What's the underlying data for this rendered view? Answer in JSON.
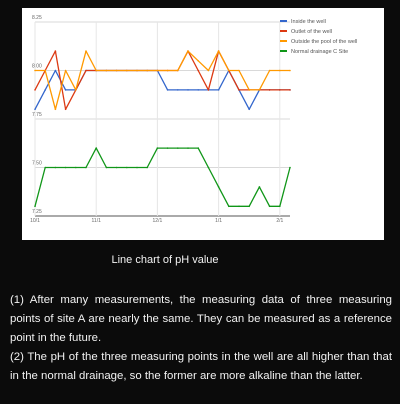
{
  "caption": "Line chart of pH value",
  "answer": {
    "point_1": "(1) After many measurements, the measuring data of three measuring points of site A are nearly the same. They can be measured as a reference point in the future.",
    "point_2": "(2) The pH of the three measuring points in the well are all higher than that in the normal drainage, so the former are more alkaline than the latter."
  },
  "chart_data": {
    "type": "line",
    "title": "",
    "xlabel": "",
    "ylabel": "",
    "x_ticks": [
      "10/1",
      "11/1",
      "12/1",
      "1/1",
      "2/1"
    ],
    "y_ticks": [
      7.25,
      7.5,
      7.75,
      8.0,
      8.25
    ],
    "y_tick_labels": [
      "7.25",
      "7.50",
      "7.75",
      "8.00",
      "8.25"
    ],
    "ylim": [
      7.25,
      8.25
    ],
    "grid": true,
    "legend_position": "top-right",
    "series": [
      {
        "name": "Inside the well",
        "color": "#3366cc",
        "x": [
          "10/1",
          "10/6",
          "10/11",
          "10/16",
          "10/21",
          "10/26",
          "10/31",
          "11/5",
          "11/10",
          "11/15",
          "11/20",
          "11/25",
          "11/30",
          "12/5",
          "12/10",
          "12/15",
          "12/20",
          "12/25",
          "12/30",
          "1/4",
          "1/9",
          "1/14",
          "1/19",
          "1/24",
          "1/29",
          "2/3"
        ],
        "y": [
          7.8,
          7.9,
          8.0,
          7.9,
          7.9,
          8.0,
          8.0,
          8.0,
          8.0,
          8.0,
          8.0,
          8.0,
          8.0,
          7.9,
          7.9,
          7.9,
          7.9,
          7.9,
          7.9,
          8.0,
          7.9,
          7.8,
          7.9,
          7.9,
          7.9,
          7.9
        ]
      },
      {
        "name": "Outlet of the well",
        "color": "#dc3912",
        "x": [
          "10/1",
          "10/6",
          "10/11",
          "10/16",
          "10/21",
          "10/26",
          "10/31",
          "11/5",
          "11/10",
          "11/15",
          "11/20",
          "11/25",
          "11/30",
          "12/5",
          "12/10",
          "12/15",
          "12/20",
          "12/25",
          "12/30",
          "1/4",
          "1/9",
          "1/14",
          "1/19",
          "1/24",
          "1/29",
          "2/3"
        ],
        "y": [
          7.9,
          8.0,
          8.1,
          7.8,
          7.9,
          8.0,
          8.0,
          8.0,
          8.0,
          8.0,
          8.0,
          8.0,
          8.0,
          8.0,
          8.0,
          8.1,
          8.0,
          7.9,
          8.1,
          8.0,
          7.9,
          7.9,
          7.9,
          7.9,
          7.9,
          7.9
        ]
      },
      {
        "name": "Outside the pool of the well",
        "color": "#ff9900",
        "x": [
          "10/1",
          "10/6",
          "10/11",
          "10/16",
          "10/21",
          "10/26",
          "10/31",
          "11/5",
          "11/10",
          "11/15",
          "11/20",
          "11/25",
          "11/30",
          "12/5",
          "12/10",
          "12/15",
          "12/20",
          "12/25",
          "12/30",
          "1/4",
          "1/9",
          "1/14",
          "1/19",
          "1/24",
          "1/29",
          "2/3"
        ],
        "y": [
          8.0,
          8.0,
          7.8,
          8.0,
          7.9,
          8.1,
          8.0,
          8.0,
          8.0,
          8.0,
          8.0,
          8.0,
          8.0,
          8.0,
          8.0,
          8.1,
          8.05,
          8.0,
          8.1,
          8.0,
          8.0,
          7.9,
          7.9,
          8.0,
          8.0,
          8.0
        ]
      },
      {
        "name": "Normal drainage C Site",
        "color": "#109618",
        "x": [
          "10/1",
          "10/6",
          "10/11",
          "10/16",
          "10/21",
          "10/26",
          "10/31",
          "11/5",
          "11/10",
          "11/15",
          "11/20",
          "11/25",
          "11/30",
          "12/5",
          "12/10",
          "12/15",
          "12/20",
          "12/25",
          "12/30",
          "1/4",
          "1/9",
          "1/14",
          "1/19",
          "1/24",
          "1/29",
          "2/3"
        ],
        "y": [
          7.3,
          7.5,
          7.5,
          7.5,
          7.5,
          7.5,
          7.6,
          7.5,
          7.5,
          7.5,
          7.5,
          7.5,
          7.6,
          7.6,
          7.6,
          7.6,
          7.6,
          7.5,
          7.4,
          7.3,
          7.3,
          7.3,
          7.4,
          7.3,
          7.3,
          7.5
        ]
      }
    ]
  }
}
